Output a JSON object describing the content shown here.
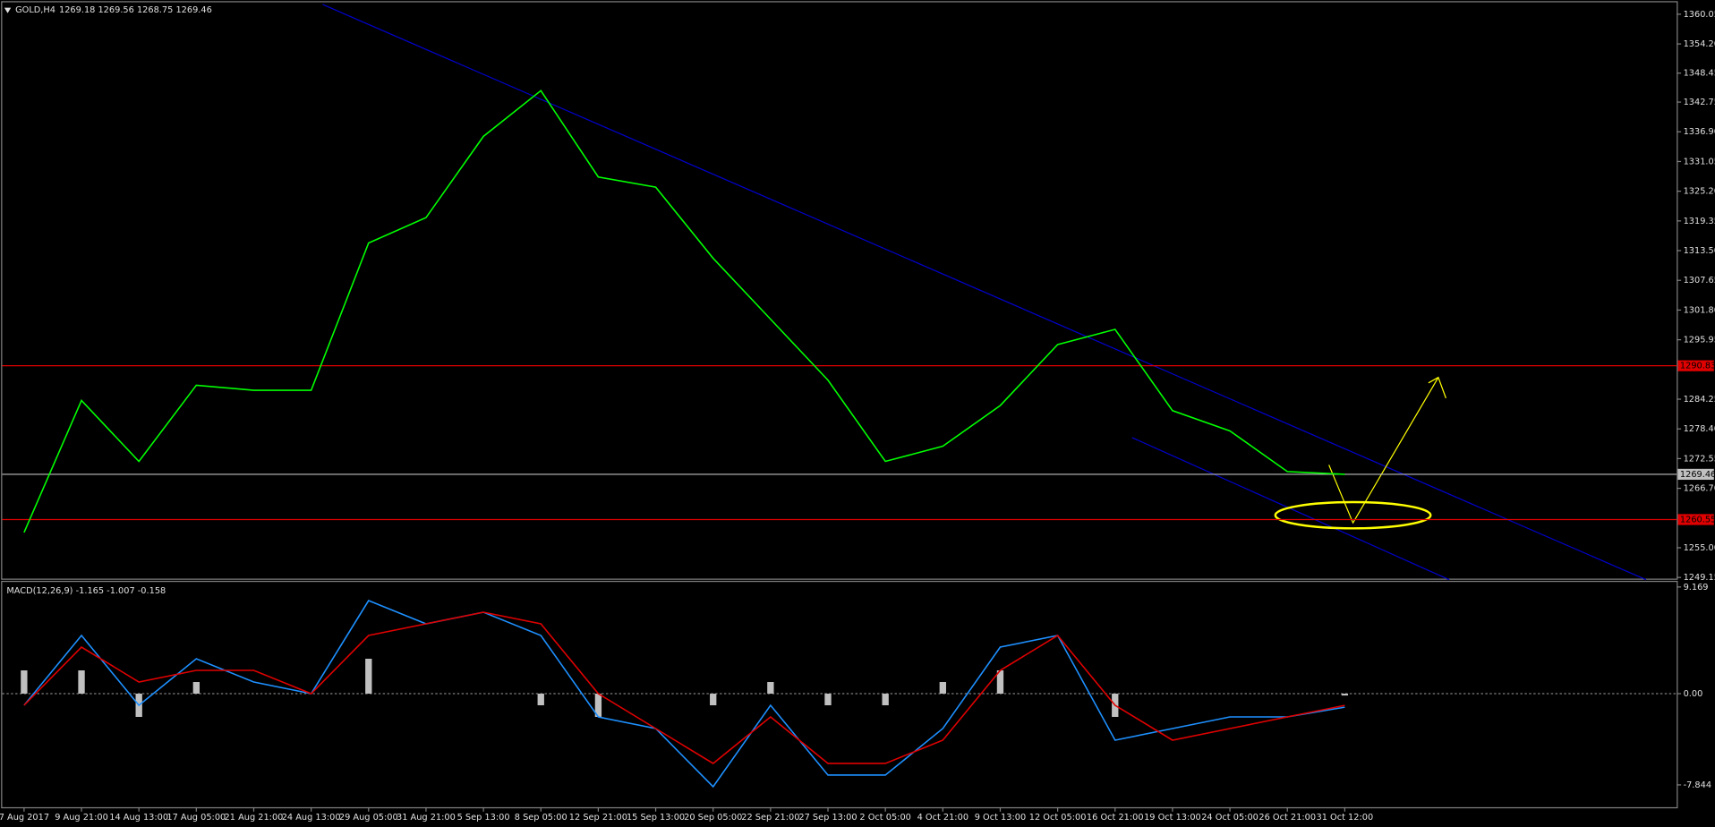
{
  "chart_data": [
    {
      "type": "line",
      "title": "GOLD,H4",
      "subtitle": "1269.18 1269.56 1268.75 1269.46",
      "categories": [
        "7 Aug 2017",
        "9 Aug 21:00",
        "14 Aug 13:00",
        "17 Aug 05:00",
        "21 Aug 21:00",
        "24 Aug 13:00",
        "29 Aug 05:00",
        "31 Aug 21:00",
        "5 Sep 13:00",
        "8 Sep 05:00",
        "12 Sep 21:00",
        "15 Sep 13:00",
        "20 Sep 05:00",
        "22 Sep 21:00",
        "27 Sep 13:00",
        "2 Oct 05:00",
        "4 Oct 21:00",
        "9 Oct 13:00",
        "12 Oct 05:00",
        "16 Oct 21:00",
        "19 Oct 13:00",
        "24 Oct 05:00",
        "26 Oct 21:00",
        "31 Oct 12:00"
      ],
      "series": [
        {
          "name": "GOLD",
          "color": "#00ff00",
          "values": [
            1258,
            1284,
            1272,
            1287,
            1286,
            1286,
            1315,
            1320,
            1336,
            1345,
            1328,
            1326,
            1312,
            1300,
            1288,
            1272,
            1275,
            1283,
            1295,
            1298,
            1282,
            1278,
            1270,
            1269.46
          ]
        }
      ],
      "ylim": [
        1248.7,
        1362.4
      ],
      "yticks": [
        1360.05,
        {
          "value": 1354.2,
          "label": "1354.20"
        },
        1348.45,
        1342.75,
        {
          "value": 1336.9,
          "label": "1336.90"
        },
        1331.05,
        {
          "value": 1325.2,
          "label": "1325.20"
        },
        1319.35,
        {
          "value": 1313.5,
          "label": "1313.50"
        },
        1307.65,
        {
          "value": 1301.8,
          "label": "1301.80"
        },
        1295.95,
        1284.25,
        {
          "value": 1278.4,
          "label": "1278.40"
        },
        1272.55,
        {
          "value": 1266.7,
          "label": "1266.70"
        },
        {
          "value": 1255,
          "label": "1255.00"
        },
        1249.15
      ],
      "hlines": [
        {
          "value": 1290.83,
          "color": "#e00000"
        },
        {
          "value": 1260.55,
          "color": "#e00000"
        },
        {
          "value": 1269.46,
          "color": "#c0c0c0"
        }
      ]
    },
    {
      "type": "macd",
      "title": "MACD(12,26,9) -1.165 -1.007 -0.158",
      "series": [
        {
          "name": "Histogram",
          "color": "#c0c0c0",
          "values": [
            2,
            2,
            -2,
            1,
            0,
            0,
            3,
            0,
            0,
            -1,
            -2,
            0,
            -1,
            1,
            -1,
            -1,
            1,
            2,
            0,
            -2,
            0,
            0,
            0,
            -0.158
          ]
        },
        {
          "name": "MACD",
          "color": "#1e90ff",
          "values": [
            -1,
            5,
            -1,
            3,
            1,
            0,
            8,
            6,
            7,
            5,
            -2,
            -3,
            -8,
            -1,
            -7,
            -7,
            -3,
            4,
            5,
            -4,
            -3,
            -2,
            -2,
            -1.165
          ]
        },
        {
          "name": "Signal",
          "color": "#e00000",
          "values": [
            -1,
            4,
            1,
            2,
            2,
            0,
            5,
            6,
            7,
            6,
            0,
            -3,
            -6,
            -2,
            -6,
            -6,
            -4,
            2,
            5,
            -1,
            -4,
            -3,
            -2,
            -1.007
          ]
        }
      ],
      "ylim": [
        -9.764,
        9.605
      ],
      "yticks": [
        9.169,
        {
          "value": 0,
          "label": "0.00"
        },
        -7.844
      ]
    }
  ]
}
